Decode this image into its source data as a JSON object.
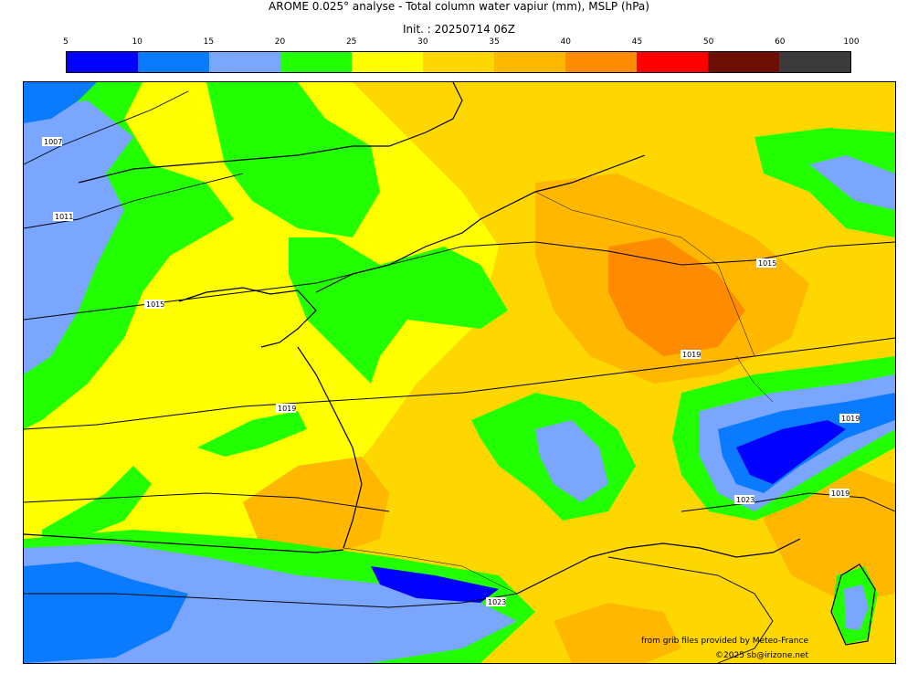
{
  "header": {
    "title": "AROME 0.025° analyse - Total column water vapiur (mm), MSLP (hPa)",
    "init": "Init. : 20250714 06Z"
  },
  "colorbar": {
    "ticks": [
      "5",
      "10",
      "15",
      "20",
      "25",
      "30",
      "35",
      "40",
      "45",
      "50",
      "60",
      "100"
    ],
    "colors": [
      "#0000ff",
      "#0a7bff",
      "#7aa6ff",
      "#22ff00",
      "#ffff00",
      "#ffd700",
      "#ffb700",
      "#ff8c00",
      "#ff0000",
      "#6b0f05",
      "#3b3b3b"
    ]
  },
  "map": {
    "isobars": [
      "1007",
      "1011",
      "1015",
      "1015",
      "1019",
      "1019",
      "1019",
      "1019",
      "1023",
      "1023"
    ],
    "palette": {
      "sea": "#ffff00",
      "deep_blue": "#0000ff",
      "mid_blue": "#0a7bff",
      "light_blue": "#7aa6ff",
      "green": "#22ff00",
      "yellow": "#ffff00",
      "gold": "#ffd700",
      "orange_light": "#ffb700",
      "orange": "#ff8c00"
    }
  },
  "credits": {
    "source": "from grib files provided by Meteo-France",
    "copyright": "©2025 sb@irizone.net"
  }
}
